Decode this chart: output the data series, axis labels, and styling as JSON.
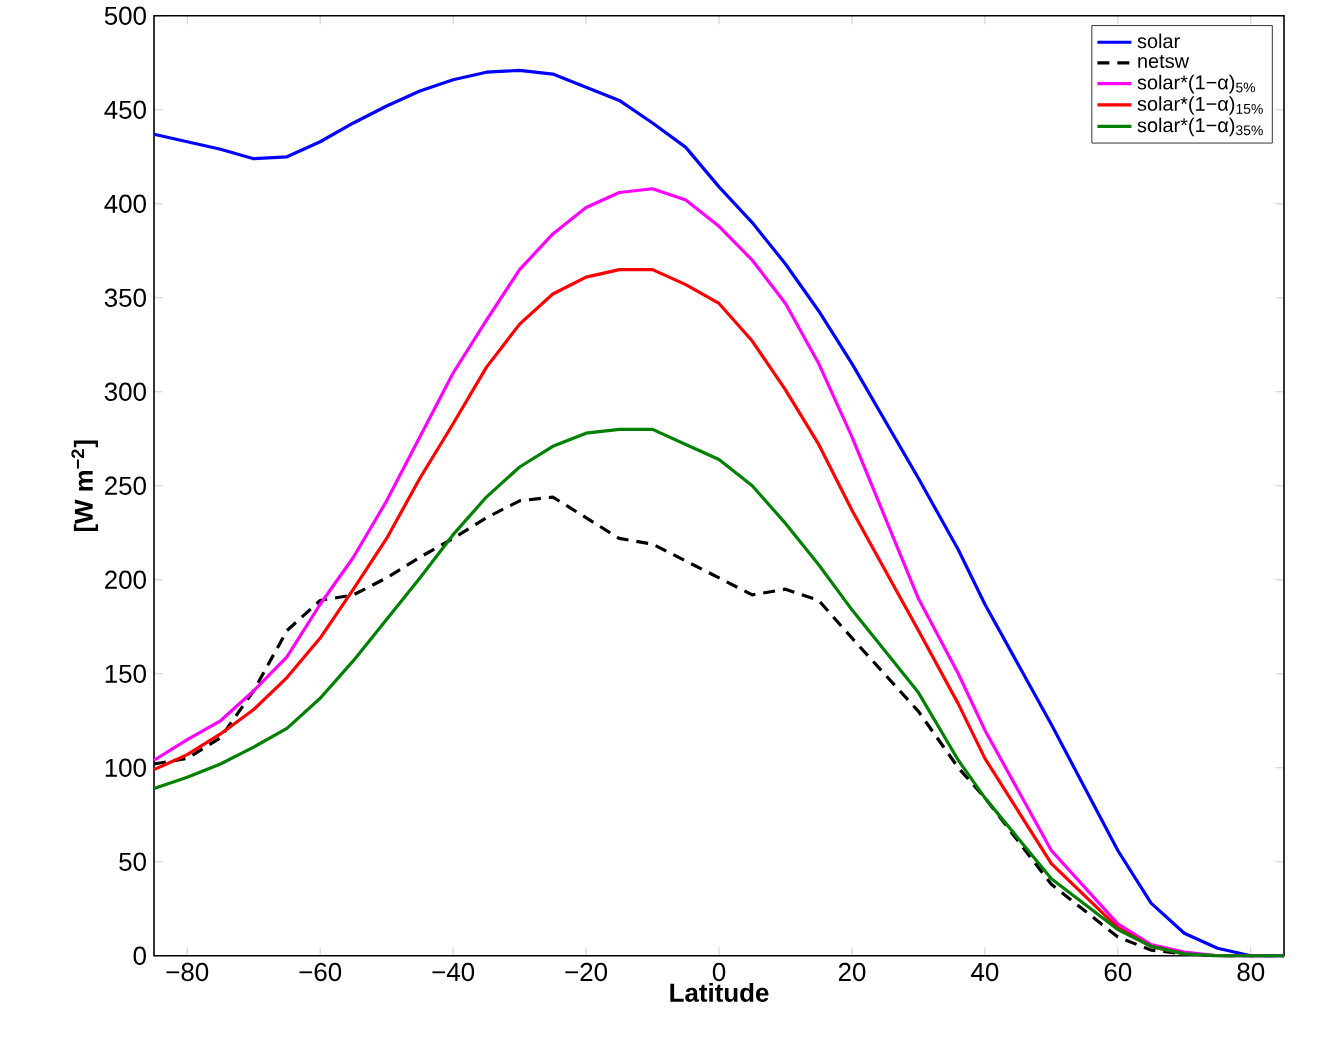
{
  "chart_data": {
    "type": "line",
    "xlabel": "Latitude",
    "ylabel": "[W m$^{−2}$]",
    "x": [
      -85,
      -80,
      -75,
      -70,
      -65,
      -60,
      -55,
      -50,
      -45,
      -40,
      -35,
      -30,
      -25,
      -20,
      -15,
      -10,
      -5,
      0,
      5,
      10,
      15,
      20,
      30,
      36,
      40,
      50,
      60,
      65,
      70,
      75,
      80,
      85
    ],
    "series": [
      {
        "name": "solar",
        "color": "#0000ff",
        "line_style": "solid",
        "values": [
          437,
          433,
          429,
          424,
          425,
          433,
          443,
          452,
          460,
          466,
          470,
          471,
          469,
          462,
          455,
          443,
          430,
          409,
          390,
          368,
          343,
          315,
          254,
          216,
          187,
          123,
          56,
          28,
          12,
          4,
          0,
          0
        ]
      },
      {
        "name": "netsw",
        "color": "#000000",
        "line_style": "dashed",
        "values": [
          102,
          105,
          116,
          141,
          173,
          189,
          192,
          201,
          212,
          222,
          233,
          242,
          244,
          233,
          222,
          219,
          210,
          201,
          192,
          195,
          189,
          169,
          130,
          100,
          84,
          38,
          10,
          3,
          1,
          0,
          0,
          0
        ]
      },
      {
        "name": "solar*(1−α)$_{5%}$",
        "color": "#ff00ff",
        "line_style": "solid",
        "values": [
          104,
          115,
          125,
          141,
          159,
          187,
          212,
          242,
          276,
          310,
          338,
          365,
          384,
          398,
          406,
          408,
          402,
          388,
          370,
          347,
          315,
          276,
          190,
          150,
          120,
          56,
          17,
          6,
          2,
          0,
          0,
          0
        ]
      },
      {
        "name": "solar*(1−α)$_{15%}$",
        "color": "#ff0000",
        "line_style": "solid",
        "values": [
          99,
          107,
          118,
          131,
          148,
          169,
          195,
          222,
          254,
          283,
          313,
          336,
          352,
          361,
          365,
          365,
          357,
          347,
          327,
          301,
          272,
          237,
          173,
          134,
          105,
          49,
          15,
          5,
          1,
          null,
          null,
          null
        ]
      },
      {
        "name": "solar*(1−α)$_{35%}$",
        "color": "#008000",
        "line_style": "solid",
        "values": [
          89,
          95,
          102,
          111,
          121,
          137,
          157,
          179,
          201,
          224,
          244,
          260,
          271,
          278,
          280,
          280,
          272,
          264,
          250,
          230,
          208,
          184,
          140,
          104,
          84,
          41,
          14,
          5,
          1,
          0,
          0,
          0
        ]
      }
    ],
    "xlim": [
      -85,
      85
    ],
    "ylim": [
      0,
      500
    ],
    "xticks": [
      {
        "value": -80,
        "label": "−80"
      },
      {
        "value": -60,
        "label": "−60"
      },
      {
        "value": -40,
        "label": "−40"
      },
      {
        "value": -20,
        "label": "−20"
      },
      0,
      20,
      40,
      60,
      80
    ],
    "yticks": [
      0,
      50,
      100,
      150,
      200,
      250,
      300,
      350,
      400,
      450,
      500
    ],
    "legend": "top right",
    "grid": false
  }
}
